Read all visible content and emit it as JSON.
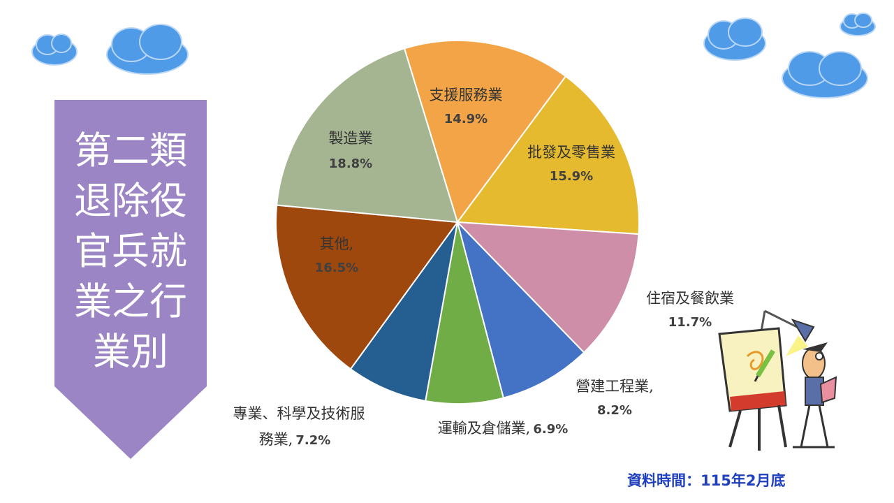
{
  "title_lines": [
    "第二類",
    "退除役",
    "官兵就",
    "業之行",
    "業別"
  ],
  "source_note": "資料時間：115年2月底",
  "colors": {
    "banner": "#9b85c4",
    "cloud": "#4f9be8",
    "source_note": "#1f3fbf"
  },
  "chart_data": {
    "type": "pie",
    "title": "",
    "start_angle_deg": 343,
    "slices": [
      {
        "name": "支援服務業",
        "pct_label": "14.9%",
        "value": 14.9,
        "color": "#f2a446"
      },
      {
        "name": "批發及零售業",
        "pct_label": "15.9%",
        "value": 15.9,
        "color": "#e6ba2e"
      },
      {
        "name": "住宿及餐飲業",
        "pct_label": "11.7%",
        "value": 11.7,
        "color": "#cf8ea8"
      },
      {
        "name": "營建工程業,",
        "pct_label": "8.2%",
        "value": 8.2,
        "color": "#4472c4"
      },
      {
        "name": "運輸及倉儲業,",
        "pct_label": "6.9%",
        "value": 6.9,
        "color": "#70ad47"
      },
      {
        "name": "專業、科學及技術服",
        "name2": "務業,",
        "pct_label": "7.2%",
        "value": 7.2,
        "color": "#255e91"
      },
      {
        "name": "其他,",
        "pct_label": "16.5%",
        "value": 16.5,
        "color": "#9e480e"
      },
      {
        "name": "製造業",
        "pct_label": "18.8%",
        "value": 18.8,
        "color": "#a5b592"
      }
    ]
  }
}
